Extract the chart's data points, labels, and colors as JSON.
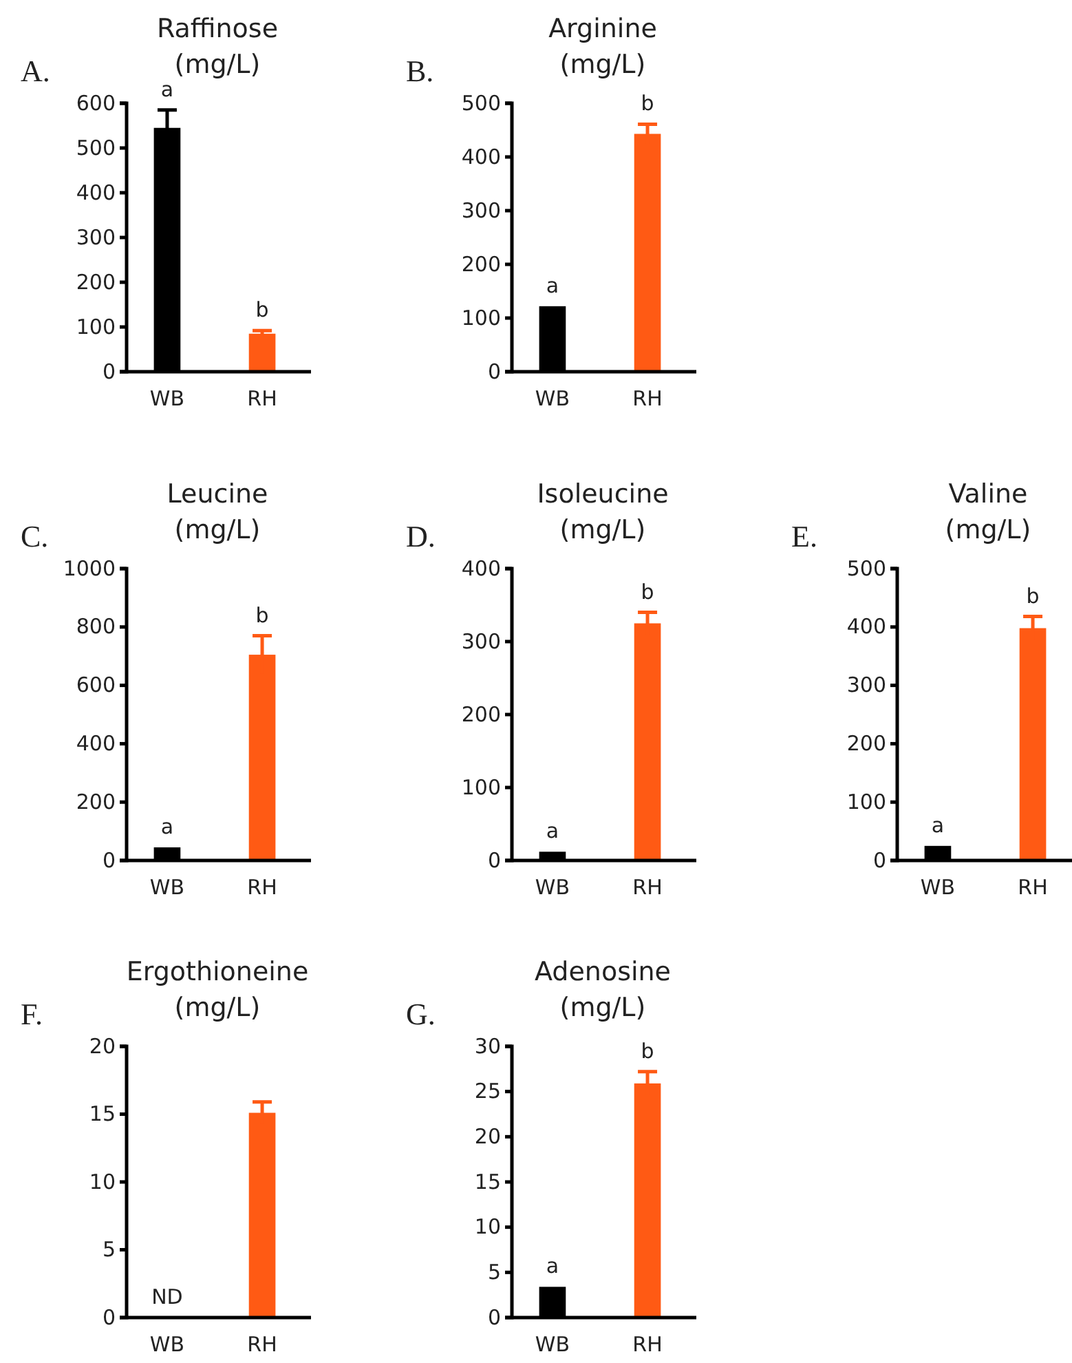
{
  "chart_data": [
    {
      "type": "bar",
      "title": "Raffinose",
      "subtitle": "(mg/L)",
      "categories": [
        "WB",
        "RH"
      ],
      "values": [
        545,
        85
      ],
      "errors": [
        40,
        7
      ],
      "colors": [
        "#000000",
        "#ff5a14"
      ],
      "ylim": [
        0,
        600
      ],
      "yticks": [
        0,
        100,
        200,
        300,
        400,
        500,
        600
      ],
      "annotations": [
        "A.",
        "a",
        "b"
      ]
    },
    {
      "type": "bar",
      "title": "Arginine",
      "subtitle": "(mg/L)",
      "categories": [
        "WB",
        "RH"
      ],
      "values": [
        122,
        443
      ],
      "errors": [
        null,
        18
      ],
      "colors": [
        "#000000",
        "#ff5a14"
      ],
      "ylim": [
        0,
        500
      ],
      "yticks": [
        0,
        100,
        200,
        300,
        400,
        500
      ],
      "annotations": [
        "B.",
        "a",
        "b"
      ]
    },
    {
      "type": "bar",
      "title": "Leucine",
      "subtitle": "(mg/L)",
      "categories": [
        "WB",
        "RH"
      ],
      "values": [
        45,
        705
      ],
      "errors": [
        null,
        65
      ],
      "colors": [
        "#000000",
        "#ff5a14"
      ],
      "ylim": [
        0,
        1000
      ],
      "yticks": [
        0,
        200,
        400,
        600,
        800,
        1000
      ],
      "annotations": [
        "C.",
        "a",
        "b"
      ]
    },
    {
      "type": "bar",
      "title": "Isoleucine",
      "subtitle": "(mg/L)",
      "categories": [
        "WB",
        "RH"
      ],
      "values": [
        12,
        325
      ],
      "errors": [
        null,
        15
      ],
      "colors": [
        "#000000",
        "#ff5a14"
      ],
      "ylim": [
        0,
        400
      ],
      "yticks": [
        0,
        100,
        200,
        300,
        400
      ],
      "annotations": [
        "D.",
        "a",
        "b"
      ]
    },
    {
      "type": "bar",
      "title": "Valine",
      "subtitle": "(mg/L)",
      "categories": [
        "WB",
        "RH"
      ],
      "values": [
        25,
        398
      ],
      "errors": [
        null,
        20
      ],
      "colors": [
        "#000000",
        "#ff5a14"
      ],
      "ylim": [
        0,
        500
      ],
      "yticks": [
        0,
        100,
        200,
        300,
        400,
        500
      ],
      "annotations": [
        "E.",
        "a",
        "b"
      ]
    },
    {
      "type": "bar",
      "title": "Ergothioneine",
      "subtitle": "(mg/L)",
      "categories": [
        "WB",
        "RH"
      ],
      "values": [
        null,
        15.1
      ],
      "errors": [
        null,
        0.8
      ],
      "colors": [
        null,
        "#ff5a14"
      ],
      "ylim": [
        0,
        20
      ],
      "yticks": [
        0,
        5,
        10,
        15,
        20
      ],
      "annotations": [
        "F.",
        "ND"
      ]
    },
    {
      "type": "bar",
      "title": "Adenosine",
      "subtitle": "(mg/L)",
      "categories": [
        "WB",
        "RH"
      ],
      "values": [
        3.4,
        25.9
      ],
      "errors": [
        null,
        1.3
      ],
      "colors": [
        "#000000",
        "#ff5a14"
      ],
      "ylim": [
        0,
        30
      ],
      "yticks": [
        0,
        5,
        10,
        15,
        20,
        25,
        30
      ],
      "annotations": [
        "G.",
        "a",
        "b"
      ]
    }
  ]
}
